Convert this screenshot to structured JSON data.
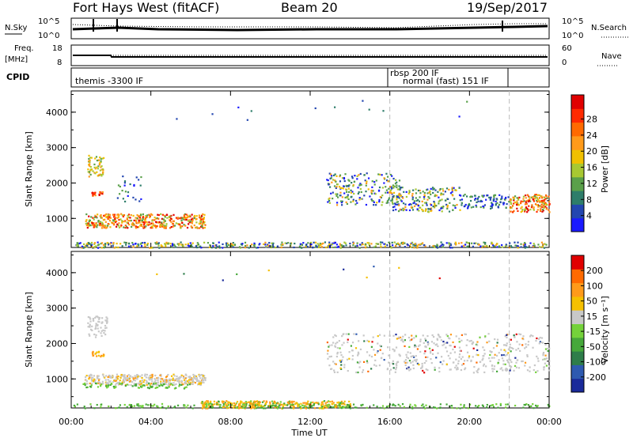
{
  "header": {
    "radar": "Fort Hays West (fitACF)",
    "beam": "Beam 20",
    "date": "19/Sep/2017"
  },
  "noise_panel": {
    "left_label": "N.Sky",
    "right_label": "N.Search",
    "ticks_left": [
      "10^5",
      "10^0"
    ],
    "ticks_right": [
      "10^5",
      "10^0"
    ]
  },
  "freq_panel": {
    "left_label_1": "Freq.",
    "left_label_2": "[MHz]",
    "right_label": "Nave",
    "ticks_left": [
      "18",
      "8"
    ],
    "ticks_right": [
      "60",
      "0"
    ]
  },
  "cpid_panel": {
    "label": "CPID",
    "programs": [
      {
        "text": "themis -3300 IF",
        "time": 0.1
      },
      {
        "text": "rbsp 200 IF",
        "time": 16.0
      },
      {
        "text": "normal (fast) 151 IF",
        "time": 16.6
      }
    ]
  },
  "chart_data": [
    {
      "type": "heatmap",
      "title": "",
      "ylabel": "Slant Range [km]",
      "xlabel": "",
      "ylim": [
        180,
        4600
      ],
      "yticks": [
        "1000",
        "2000",
        "3000",
        "4000"
      ],
      "colorbar_label": "Power [dB]",
      "colorbar_ticks": [
        "4",
        "8",
        "12",
        "16",
        "20",
        "24",
        "28"
      ],
      "colorbar_colors": [
        "#1a1aff",
        "#2346b0",
        "#2e7d6a",
        "#5aa04a",
        "#a8c832",
        "#f0c000",
        "#ff9a1a",
        "#ff6a00",
        "#ff2a00",
        "#e00000"
      ],
      "program_change_times": [
        16.0,
        22.0
      ]
    },
    {
      "type": "heatmap",
      "title": "",
      "ylabel": "Slant Range [km]",
      "xlabel": "Time UT",
      "ylim": [
        180,
        4600
      ],
      "yticks": [
        "1000",
        "2000",
        "3000",
        "4000"
      ],
      "xticks": [
        "00:00",
        "04:00",
        "08:00",
        "12:00",
        "16:00",
        "20:00",
        "00:00"
      ],
      "colorbar_label": "Velocity [m s⁻¹]",
      "colorbar_ticks": [
        "200",
        "100",
        "50",
        "15",
        "-15",
        "-50",
        "-100",
        "-200"
      ],
      "colorbar_colors": [
        "#1a2a9a",
        "#2e5ab0",
        "#2e7d4a",
        "#46a83a",
        "#74d23a",
        "#c8c8c8",
        "#f5c000",
        "#ff9a1a",
        "#ff6a00",
        "#e00000"
      ],
      "program_change_times": [
        16.0,
        22.0
      ]
    }
  ]
}
